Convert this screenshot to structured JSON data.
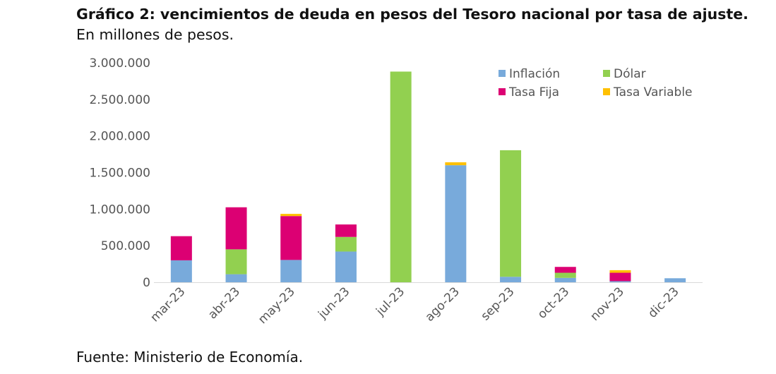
{
  "title": {
    "bold": "Gráfico 2: vencimientos de deuda en pesos del Tesoro nacional por tasa de ajuste.",
    "normal": " En millones de pesos."
  },
  "source": "Fuente: Ministerio de Economía.",
  "chart_data": {
    "type": "bar",
    "stacked": true,
    "categories": [
      "mar-23",
      "abr-23",
      "may-23",
      "jun-23",
      "jul-23",
      "ago-23",
      "sep-23",
      "oct-23",
      "nov-23",
      "dic-23"
    ],
    "series": [
      {
        "name": "Inflación",
        "color": "#78aadb",
        "values": [
          300000,
          110000,
          305000,
          420000,
          0,
          1600000,
          75000,
          60000,
          15000,
          55000
        ]
      },
      {
        "name": "Dólar",
        "color": "#92d050",
        "values": [
          0,
          340000,
          0,
          200000,
          2880000,
          0,
          1730000,
          70000,
          0,
          0
        ]
      },
      {
        "name": "Tasa Fija",
        "color": "#dc0073",
        "values": [
          330000,
          575000,
          600000,
          170000,
          0,
          0,
          0,
          80000,
          115000,
          0
        ]
      },
      {
        "name": "Tasa Variable",
        "color": "#ffc000",
        "values": [
          0,
          0,
          30000,
          0,
          0,
          40000,
          0,
          0,
          35000,
          0
        ]
      }
    ],
    "yticks": [
      "0",
      "500.000",
      "1.000.000",
      "1.500.000",
      "2.000.000",
      "2.500.000",
      "3.000.000"
    ],
    "ylim": [
      0,
      3000000
    ],
    "legend_position": "top-right",
    "grid": false
  }
}
